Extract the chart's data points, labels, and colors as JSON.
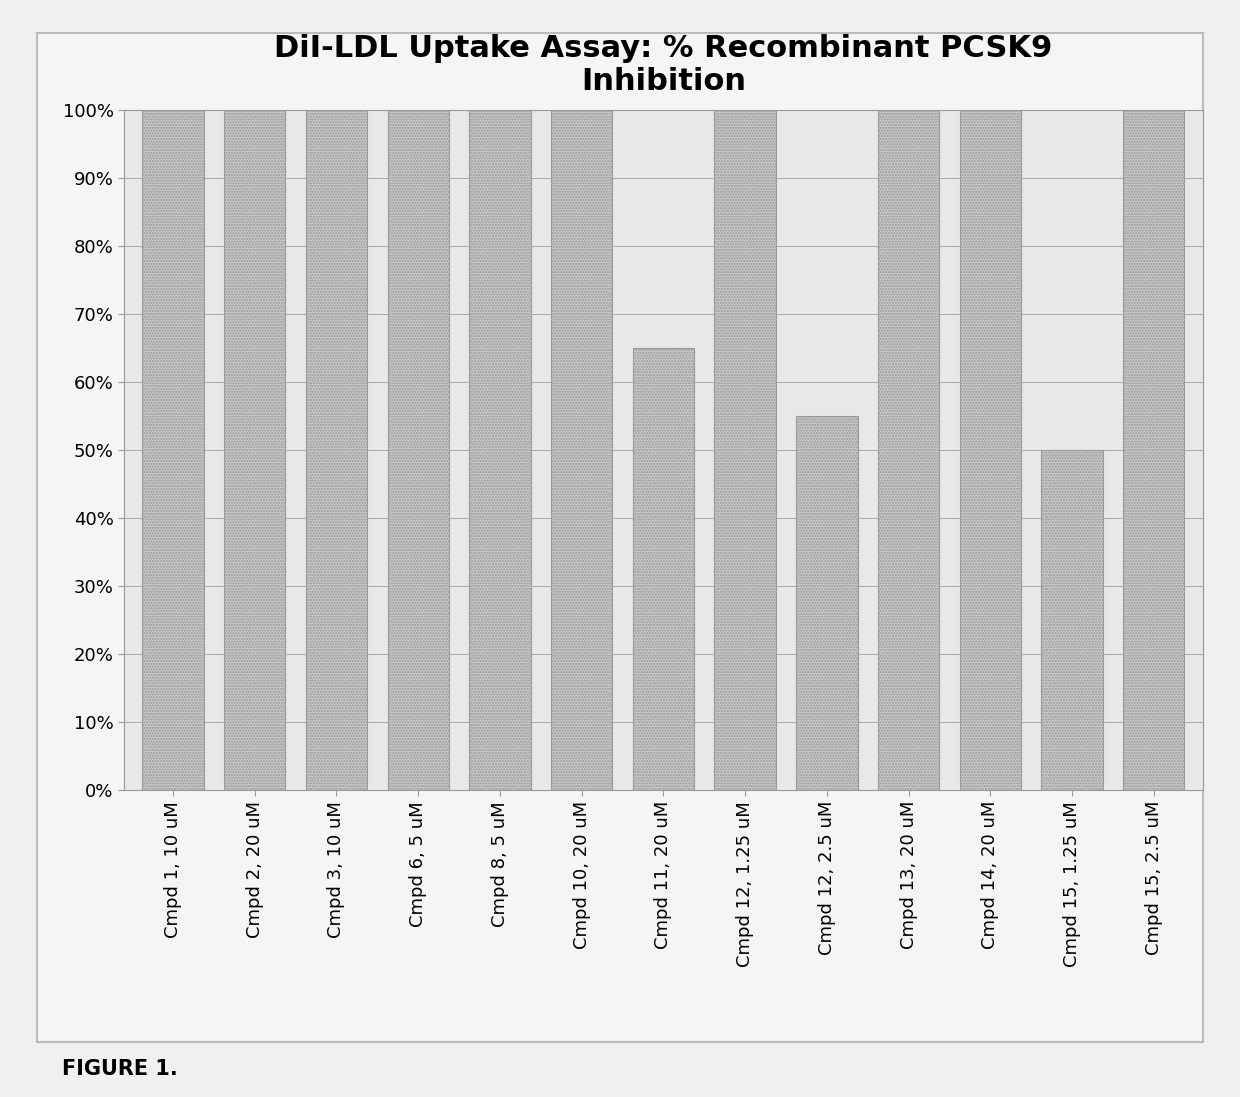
{
  "title": "DiI-LDL Uptake Assay: % Recombinant PCSK9\nInhibition",
  "categories": [
    "Cmpd 1, 10 uM",
    "Cmpd 2, 20 uM",
    "Cmpd 3, 10 uM",
    "Cmpd 6, 5 uM",
    "Cmpd 8, 5 uM",
    "Cmpd 10, 20 uM",
    "Cmpd 11, 20 uM",
    "Cmpd 12, 1.25 uM",
    "Cmpd 12, 2.5 uM",
    "Cmpd 13, 20 uM",
    "Cmpd 14, 20 uM",
    "Cmpd 15, 1.25 uM",
    "Cmpd 15, 2.5 uM"
  ],
  "values": [
    100,
    100,
    100,
    100,
    100,
    100,
    65,
    100,
    55,
    100,
    100,
    50,
    100
  ],
  "bar_color": "#c8c8c8",
  "bar_edge_color": "#999999",
  "background_color": "#e8e8e8",
  "plot_bg_color": "#e8e8e8",
  "outer_bg_color": "#d8d8d8",
  "grid_color": "#aaaaaa",
  "title_fontsize": 22,
  "tick_fontsize": 13,
  "ytick_values": [
    0,
    10,
    20,
    30,
    40,
    50,
    60,
    70,
    80,
    90,
    100
  ],
  "ytick_labels": [
    "0%",
    "10%",
    "20%",
    "30%",
    "40%",
    "50%",
    "60%",
    "70%",
    "80%",
    "90%",
    "100%"
  ],
  "figure_caption": "FIGURE 1.",
  "caption_fontsize": 15,
  "bar_width": 0.75
}
